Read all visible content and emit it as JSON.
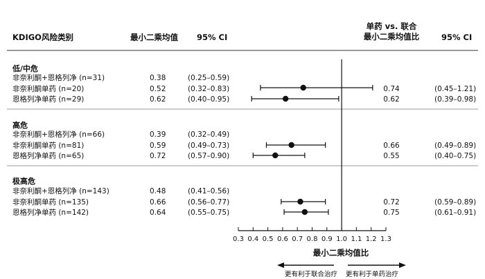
{
  "header": {
    "col_category": "KDIGO风险类别",
    "col_lsm": "最小二乘均值",
    "col_ci": "95% CI",
    "col_ratio_line1": "单药 vs. 联合",
    "col_ratio_line2": "最小二乘均值比",
    "col_ratio_ci": "95% CI"
  },
  "groups": [
    {
      "name": "低/中危",
      "rows": [
        {
          "label": "非奈利酮+恩格列净 (n=31)",
          "lsm": "0.38",
          "ci": "(0.25–0.59)",
          "ratio": null,
          "ratio_text": "",
          "ratio_ci": "",
          "ratio_lo": null,
          "ratio_hi": null
        },
        {
          "label": "非奈利酮单药 (n=20)",
          "lsm": "0.52",
          "ci": "(0.32–0.83)",
          "ratio": 0.74,
          "ratio_text": "0.74",
          "ratio_ci": "(0.45–1.21)",
          "ratio_lo": 0.45,
          "ratio_hi": 1.21
        },
        {
          "label": "恩格列净单药 (n=29)",
          "lsm": "0.62",
          "ci": "(0.40–0.95)",
          "ratio": 0.62,
          "ratio_text": "0.62",
          "ratio_ci": "(0.39–0.98)",
          "ratio_lo": 0.39,
          "ratio_hi": 0.98
        }
      ]
    },
    {
      "name": "高危",
      "rows": [
        {
          "label": "非奈利酮+恩格列净 (n=66)",
          "lsm": "0.39",
          "ci": "(0.32–0.49)",
          "ratio": null,
          "ratio_text": "",
          "ratio_ci": "",
          "ratio_lo": null,
          "ratio_hi": null
        },
        {
          "label": "非奈利酮单药 (n=81)",
          "lsm": "0.59",
          "ci": "(0.49–0.73)",
          "ratio": 0.66,
          "ratio_text": "0.66",
          "ratio_ci": "(0.49–0.89)",
          "ratio_lo": 0.49,
          "ratio_hi": 0.89
        },
        {
          "label": "恩格列净单药 (n=65)",
          "lsm": "0.72",
          "ci": "(0.57–0.90)",
          "ratio": 0.55,
          "ratio_text": "0.55",
          "ratio_ci": "(0.40–0.75)",
          "ratio_lo": 0.4,
          "ratio_hi": 0.75
        }
      ]
    },
    {
      "name": "极高危",
      "rows": [
        {
          "label": "非奈利酮+恩格列净 (n=143)",
          "lsm": "0.48",
          "ci": "(0.41–0.56)",
          "ratio": null,
          "ratio_text": "",
          "ratio_ci": "",
          "ratio_lo": null,
          "ratio_hi": null
        },
        {
          "label": "非奈利酮单药 (n=135)",
          "lsm": "0.66",
          "ci": "(0.56–0.77)",
          "ratio": 0.72,
          "ratio_text": "0.72",
          "ratio_ci": "(0.59–0.89)",
          "ratio_lo": 0.59,
          "ratio_hi": 0.89
        },
        {
          "label": "恩格列净单药 (n=142)",
          "lsm": "0.64",
          "ci": "(0.55–0.75)",
          "ratio": 0.75,
          "ratio_text": "0.75",
          "ratio_ci": "(0.61–0.91)",
          "ratio_lo": 0.61,
          "ratio_hi": 0.91
        }
      ]
    }
  ],
  "axis": {
    "label": "最小二乘均值比",
    "ticks": [
      "0.3",
      "0.4",
      "0.5",
      "0.6",
      "0.7",
      "0.8",
      "0.9",
      "1.0",
      "1.1",
      "1.2",
      "1.3"
    ],
    "favors_left": "更有利于联合治疗",
    "favors_right": "更有利于单药治疗"
  },
  "chart_data": {
    "type": "scatter",
    "subtype": "forest-plot",
    "xlabel": "最小二乘均值比",
    "xlim": [
      0.3,
      1.3
    ],
    "reference_line": 1.0,
    "series": [
      {
        "category": "低/中危",
        "row": "非奈利酮单药 (n=20)",
        "estimate": 0.74,
        "ci_low": 0.45,
        "ci_high": 1.21
      },
      {
        "category": "低/中危",
        "row": "恩格列净单药 (n=29)",
        "estimate": 0.62,
        "ci_low": 0.39,
        "ci_high": 0.98
      },
      {
        "category": "高危",
        "row": "非奈利酮单药 (n=81)",
        "estimate": 0.66,
        "ci_low": 0.49,
        "ci_high": 0.89
      },
      {
        "category": "高危",
        "row": "恩格列净单药 (n=65)",
        "estimate": 0.55,
        "ci_low": 0.4,
        "ci_high": 0.75
      },
      {
        "category": "极高危",
        "row": "非奈利酮单药 (n=135)",
        "estimate": 0.72,
        "ci_low": 0.59,
        "ci_high": 0.89
      },
      {
        "category": "极高危",
        "row": "恩格列净单药 (n=142)",
        "estimate": 0.75,
        "ci_low": 0.61,
        "ci_high": 0.91
      }
    ],
    "colors": {
      "marker": "#111111",
      "lines": "#111111",
      "dividers": "#999999"
    }
  }
}
